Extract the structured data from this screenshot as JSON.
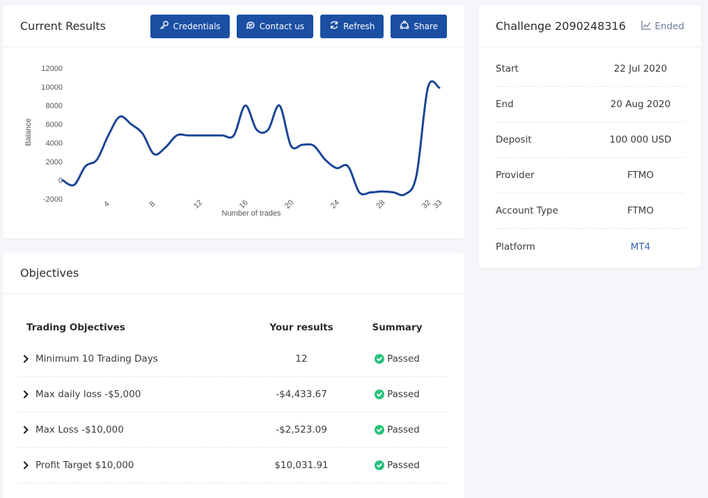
{
  "results": {
    "title": "Current Results",
    "buttons": {
      "credentials": "Credentials",
      "contact": "Contact us",
      "refresh": "Refresh",
      "share": "Share"
    }
  },
  "chart_data": {
    "type": "line",
    "title": "",
    "xlabel": "Number of trades",
    "ylabel": "Balance",
    "xlim": [
      0,
      33
    ],
    "ylim": [
      -2000,
      12000
    ],
    "yticks": [
      -2000,
      0,
      2000,
      4000,
      6000,
      8000,
      10000,
      12000
    ],
    "xticks": [
      4,
      8,
      12,
      16,
      20,
      24,
      28,
      32,
      33
    ],
    "grid": false,
    "color": "#1a4597",
    "x": [
      0,
      1,
      2,
      3,
      4,
      5,
      6,
      7,
      8,
      9,
      10,
      11,
      12,
      13,
      14,
      15,
      16,
      17,
      18,
      19,
      20,
      21,
      22,
      23,
      24,
      25,
      26,
      27,
      28,
      29,
      30,
      31,
      32,
      33
    ],
    "y": [
      0,
      -500,
      1500,
      2200,
      4800,
      6800,
      6000,
      5000,
      2800,
      3500,
      4800,
      4800,
      4800,
      4800,
      4800,
      4800,
      8000,
      5400,
      5400,
      8000,
      3700,
      3800,
      3700,
      2200,
      1300,
      1500,
      -1300,
      -1300,
      -1200,
      -1300,
      -1500,
      500,
      9900,
      9900
    ]
  },
  "objectives": {
    "title": "Objectives",
    "headers": [
      "Trading Objectives",
      "Your results",
      "Summary"
    ],
    "rows": [
      {
        "name": "Minimum 10 Trading Days",
        "result": "12",
        "summary": "Passed"
      },
      {
        "name": "Max daily loss -$5,000",
        "result": "-$4,433.67",
        "summary": "Passed"
      },
      {
        "name": "Max Loss -$10,000",
        "result": "-$2,523.09",
        "summary": "Passed"
      },
      {
        "name": "Profit Target $10,000",
        "result": "$10,031.91",
        "summary": "Passed"
      }
    ]
  },
  "challenge": {
    "title": "Challenge 2090248316",
    "status": "Ended",
    "fields": [
      {
        "label": "Start",
        "value": "22 Jul 2020"
      },
      {
        "label": "End",
        "value": "20 Aug 2020"
      },
      {
        "label": "Deposit",
        "value": "100 000 USD"
      },
      {
        "label": "Provider",
        "value": "FTMO"
      },
      {
        "label": "Account Type",
        "value": "FTMO"
      },
      {
        "label": "Platform",
        "value": "MT4"
      }
    ]
  }
}
